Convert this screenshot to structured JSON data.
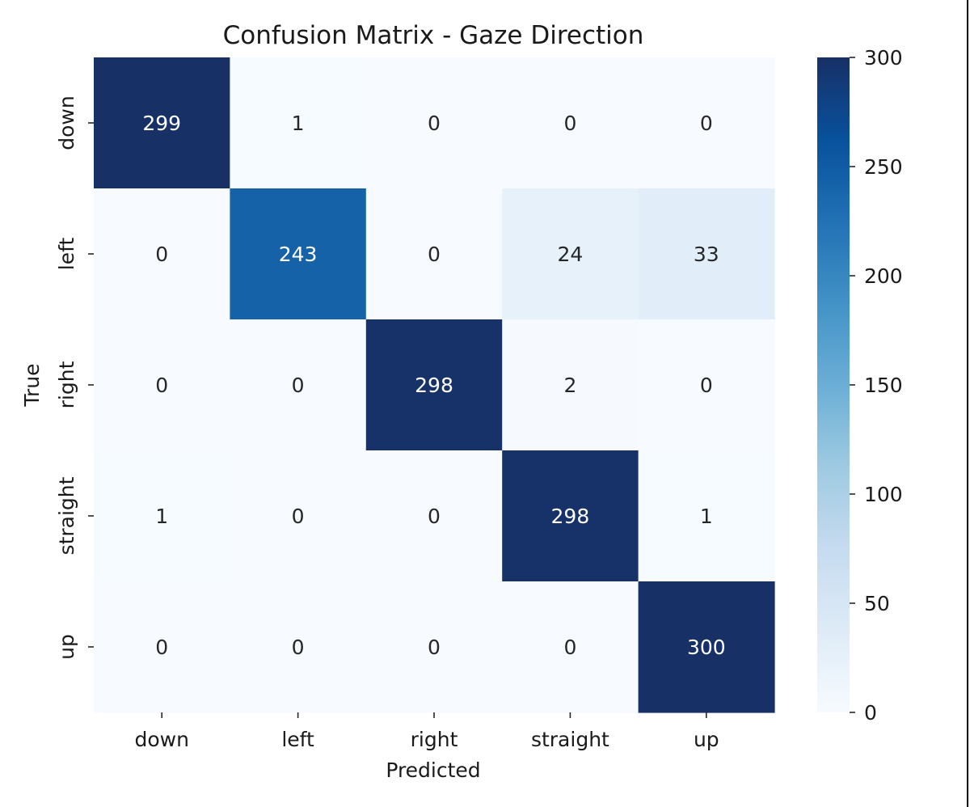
{
  "chart_data": {
    "type": "heatmap",
    "title": "Confusion Matrix - Gaze Direction",
    "xlabel": "Predicted",
    "ylabel": "True",
    "x_categories": [
      "down",
      "left",
      "right",
      "straight",
      "up"
    ],
    "y_categories": [
      "down",
      "left",
      "right",
      "straight",
      "up"
    ],
    "values": [
      [
        299,
        1,
        0,
        0,
        0
      ],
      [
        0,
        243,
        0,
        24,
        33
      ],
      [
        0,
        0,
        298,
        2,
        0
      ],
      [
        1,
        0,
        0,
        298,
        1
      ],
      [
        0,
        0,
        0,
        0,
        300
      ]
    ],
    "colorbar": {
      "min": 0,
      "max": 300,
      "ticks": [
        0,
        50,
        100,
        150,
        200,
        250,
        300
      ],
      "colormap": "Blues"
    }
  }
}
